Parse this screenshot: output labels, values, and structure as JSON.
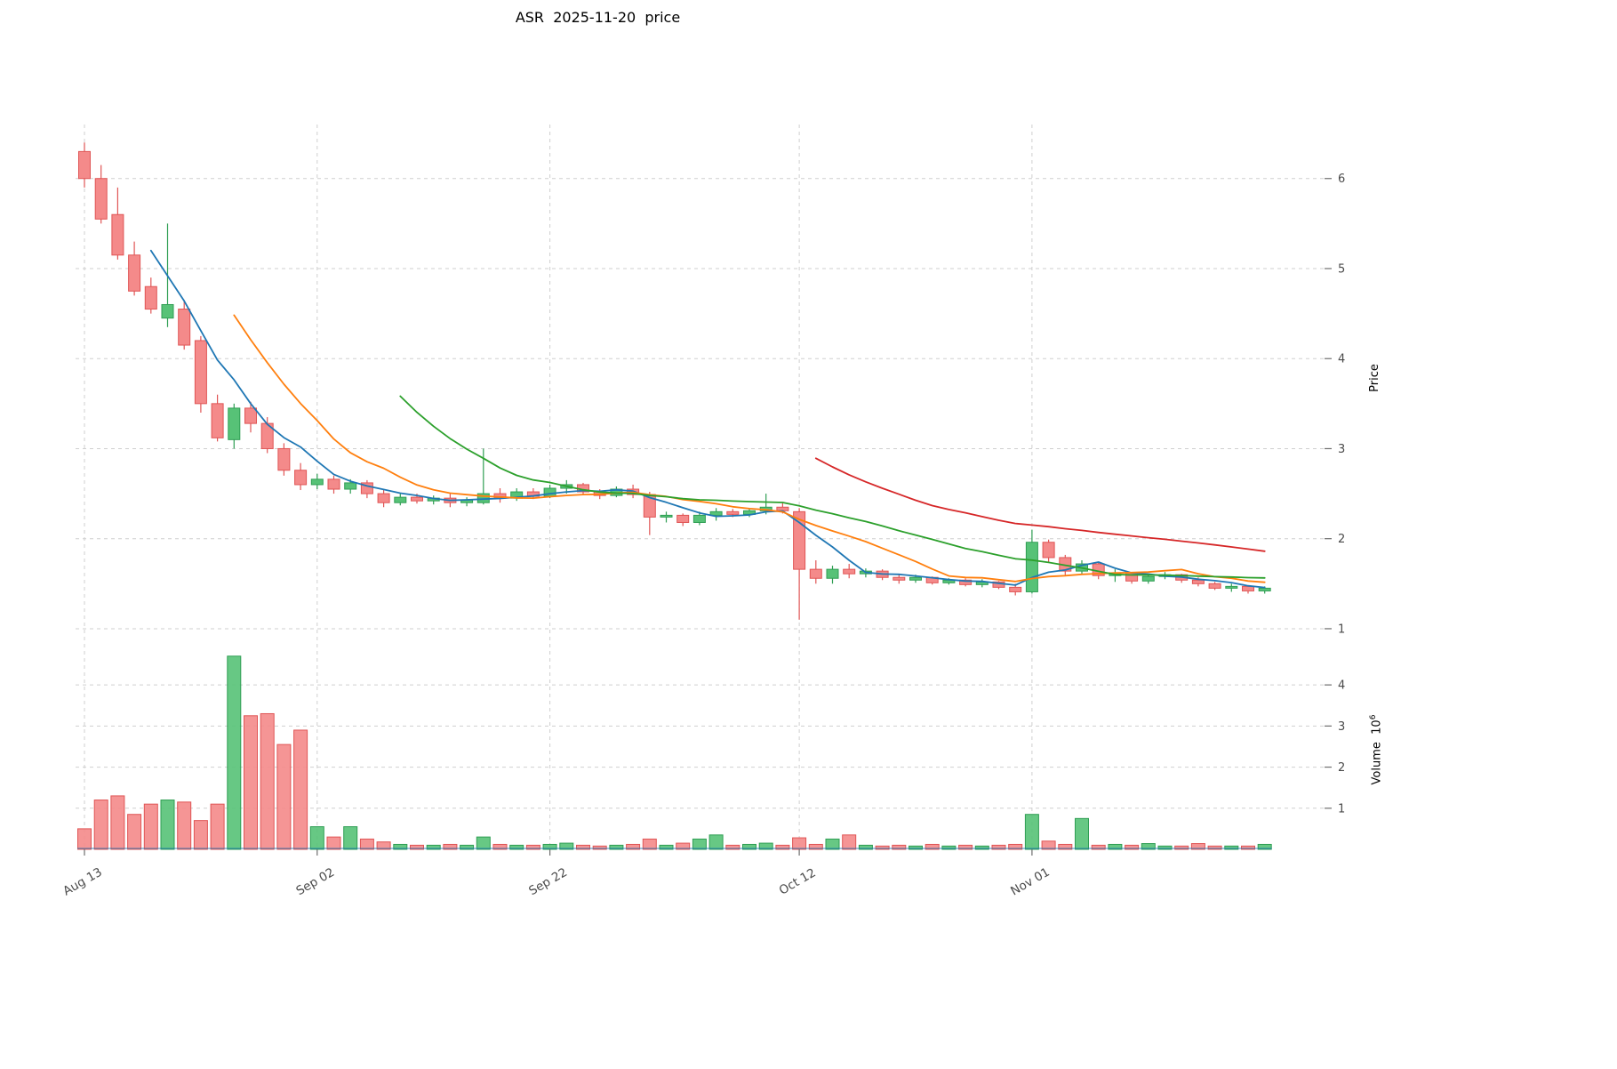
{
  "colors": {
    "up_fill": "#57c277",
    "up_edge": "#2f9e53",
    "down_fill": "#f48a8a",
    "down_edge": "#e05555",
    "grid": "#cfcfcf",
    "tick_mark": "#6e6e6e",
    "tick_text": "#4a4a4a",
    "baseline": "#1f77b4"
  },
  "chart_data": {
    "type": "candlestick",
    "title": "ASR  2025-11-20  price",
    "ylabel_price": "Price",
    "ylabel_volume_base": "Volume  10",
    "ylabel_volume_exp": "6",
    "price_range": [
      0.95,
      6.6
    ],
    "volume_range": [
      0,
      4.76
    ],
    "price_ticks": [
      1,
      2,
      3,
      4,
      5,
      6
    ],
    "volume_ticks": [
      1,
      2,
      3,
      4
    ],
    "x_ticks": [
      {
        "index": 0,
        "label": "Aug 13"
      },
      {
        "index": 14,
        "label": "Sep 02"
      },
      {
        "index": 28,
        "label": "Sep 22"
      },
      {
        "index": 43,
        "label": "Oct 12"
      },
      {
        "index": 57,
        "label": "Nov 01"
      }
    ],
    "open": [
      6.3,
      6.0,
      5.6,
      5.15,
      4.8,
      4.45,
      4.55,
      4.2,
      3.5,
      3.1,
      3.45,
      3.28,
      3.0,
      2.76,
      2.6,
      2.66,
      2.55,
      2.62,
      2.5,
      2.4,
      2.46,
      2.42,
      2.45,
      2.4,
      2.4,
      2.5,
      2.45,
      2.52,
      2.47,
      2.56,
      2.6,
      2.52,
      2.48,
      2.55,
      2.49,
      2.24,
      2.26,
      2.18,
      2.26,
      2.3,
      2.27,
      2.31,
      2.35,
      2.3,
      1.66,
      1.56,
      1.66,
      1.61,
      1.64,
      1.57,
      1.54,
      1.57,
      1.51,
      1.54,
      1.49,
      1.52,
      1.46,
      1.41,
      1.96,
      1.79,
      1.64,
      1.72,
      1.59,
      1.62,
      1.53,
      1.58,
      1.6,
      1.54,
      1.5,
      1.45,
      1.47,
      1.42
    ],
    "high": [
      6.4,
      6.15,
      5.9,
      5.3,
      4.9,
      5.5,
      4.65,
      4.25,
      3.6,
      3.5,
      3.52,
      3.35,
      3.06,
      2.84,
      2.72,
      2.7,
      2.66,
      2.65,
      2.55,
      2.5,
      2.5,
      2.48,
      2.5,
      2.46,
      3.0,
      2.56,
      2.56,
      2.56,
      2.6,
      2.65,
      2.62,
      2.55,
      2.58,
      2.6,
      2.52,
      2.3,
      2.28,
      2.3,
      2.34,
      2.33,
      2.34,
      2.5,
      2.4,
      2.34,
      1.76,
      1.7,
      1.72,
      1.67,
      1.66,
      1.6,
      1.6,
      1.58,
      1.56,
      1.56,
      1.55,
      1.53,
      1.5,
      2.1,
      1.99,
      1.82,
      1.76,
      1.74,
      1.66,
      1.63,
      1.61,
      1.63,
      1.61,
      1.57,
      1.52,
      1.5,
      1.48,
      1.47
    ],
    "low": [
      5.9,
      5.5,
      5.1,
      4.7,
      4.5,
      4.35,
      4.1,
      3.4,
      3.08,
      3.0,
      3.18,
      2.95,
      2.7,
      2.54,
      2.55,
      2.5,
      2.5,
      2.45,
      2.35,
      2.37,
      2.39,
      2.38,
      2.35,
      2.36,
      2.38,
      2.4,
      2.42,
      2.44,
      2.45,
      2.5,
      2.49,
      2.44,
      2.46,
      2.45,
      2.04,
      2.18,
      2.14,
      2.15,
      2.2,
      2.24,
      2.24,
      2.27,
      2.28,
      1.1,
      1.5,
      1.5,
      1.56,
      1.57,
      1.54,
      1.5,
      1.51,
      1.49,
      1.49,
      1.47,
      1.46,
      1.44,
      1.37,
      1.39,
      1.74,
      1.59,
      1.6,
      1.55,
      1.52,
      1.5,
      1.5,
      1.55,
      1.51,
      1.47,
      1.43,
      1.41,
      1.39,
      1.39
    ],
    "close": [
      6.0,
      5.55,
      5.15,
      4.75,
      4.55,
      4.6,
      4.15,
      3.5,
      3.12,
      3.45,
      3.28,
      3.0,
      2.76,
      2.6,
      2.66,
      2.55,
      2.62,
      2.5,
      2.4,
      2.46,
      2.42,
      2.45,
      2.4,
      2.43,
      2.5,
      2.45,
      2.52,
      2.47,
      2.56,
      2.6,
      2.52,
      2.48,
      2.55,
      2.49,
      2.24,
      2.26,
      2.18,
      2.26,
      2.3,
      2.27,
      2.31,
      2.35,
      2.31,
      1.66,
      1.56,
      1.66,
      1.61,
      1.64,
      1.57,
      1.54,
      1.57,
      1.51,
      1.54,
      1.49,
      1.52,
      1.46,
      1.41,
      1.96,
      1.79,
      1.64,
      1.72,
      1.59,
      1.62,
      1.53,
      1.58,
      1.6,
      1.54,
      1.5,
      1.45,
      1.47,
      1.42,
      1.45
    ],
    "volume": [
      0.5,
      1.2,
      1.3,
      0.85,
      1.1,
      1.2,
      1.15,
      0.7,
      1.1,
      4.7,
      3.25,
      3.3,
      2.55,
      2.9,
      0.55,
      0.3,
      0.55,
      0.25,
      0.18,
      0.12,
      0.1,
      0.1,
      0.12,
      0.1,
      0.3,
      0.12,
      0.1,
      0.1,
      0.12,
      0.15,
      0.1,
      0.08,
      0.1,
      0.12,
      0.25,
      0.1,
      0.15,
      0.25,
      0.35,
      0.1,
      0.12,
      0.15,
      0.1,
      0.28,
      0.12,
      0.25,
      0.35,
      0.1,
      0.08,
      0.1,
      0.08,
      0.12,
      0.08,
      0.1,
      0.08,
      0.1,
      0.12,
      0.85,
      0.2,
      0.12,
      0.75,
      0.1,
      0.12,
      0.1,
      0.14,
      0.08,
      0.08,
      0.14,
      0.08,
      0.08,
      0.08,
      0.12
    ],
    "moving_averages": [
      {
        "window": 5,
        "color": "#1f77b4"
      },
      {
        "window": 10,
        "color": "#ff7f0e"
      },
      {
        "window": 20,
        "color": "#2ca02c"
      },
      {
        "window": 45,
        "color": "#d62728"
      }
    ],
    "legend_position": "none",
    "grid": "dashed"
  }
}
